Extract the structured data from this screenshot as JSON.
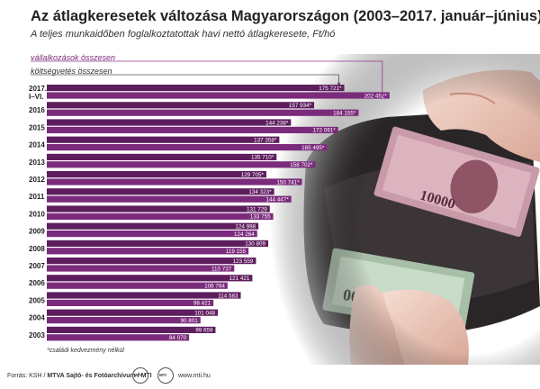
{
  "title": "Az átlagkeresetek változása Magyarországon (2003–2017. január–június)",
  "subtitle": "A teljes munkaidőben foglalkoztatottak havi nettó átlagkeresete, Ft/hó",
  "footnote": "*családi kedvezmény nélkül",
  "footer": {
    "source_prefix": "Forrás: KSH / ",
    "source_bold": "MTVA Sajtó- és Fotóarchívum / MTI",
    "logo1_text": "MTI",
    "logo2_text": "MTI",
    "url": "www.mti.hu"
  },
  "colors": {
    "corporate": "#5e1e5e",
    "budget": "#7b2b7b",
    "leader_line": "#8b3a8b"
  },
  "chart_data": {
    "type": "bar",
    "orientation": "horizontal",
    "categories": [
      "2017. I–VI.",
      "2016",
      "2015",
      "2014",
      "2013",
      "2012",
      "2011",
      "2010",
      "2009",
      "2008",
      "2007",
      "2006",
      "2005",
      "2004",
      "2003"
    ],
    "series": [
      {
        "name": "vállalkozások összesen",
        "values": [
          175721,
          157934,
          144238,
          137358,
          135710,
          129705,
          134323,
          131729,
          124998,
          130809,
          123559,
          121421,
          114583,
          101048,
          99659
        ],
        "labels": [
          "175 721*",
          "157 934*",
          "144 238*",
          "137 358*",
          "135 710*",
          "129 705*",
          "134 323*",
          "131 729",
          "124 998",
          "130 809",
          "123 559",
          "121 421",
          "114 583",
          "101 048",
          "99 659"
        ]
      },
      {
        "name": "költségvetés összesen",
        "values": [
          202452,
          184155,
          172091,
          165495,
          158702,
          150741,
          144447,
          133755,
          124264,
          119155,
          110737,
          106794,
          98421,
          90801,
          84070
        ],
        "labels": [
          "202 452*",
          "184 155*",
          "172 091*",
          "165 495*",
          "158 702*",
          "150 741*",
          "144 447*",
          "133 755",
          "124 264",
          "119 155",
          "110 737",
          "106 794",
          "98 421",
          "90 801",
          "84 070"
        ]
      }
    ],
    "xlim": [
      0,
      210000
    ]
  }
}
